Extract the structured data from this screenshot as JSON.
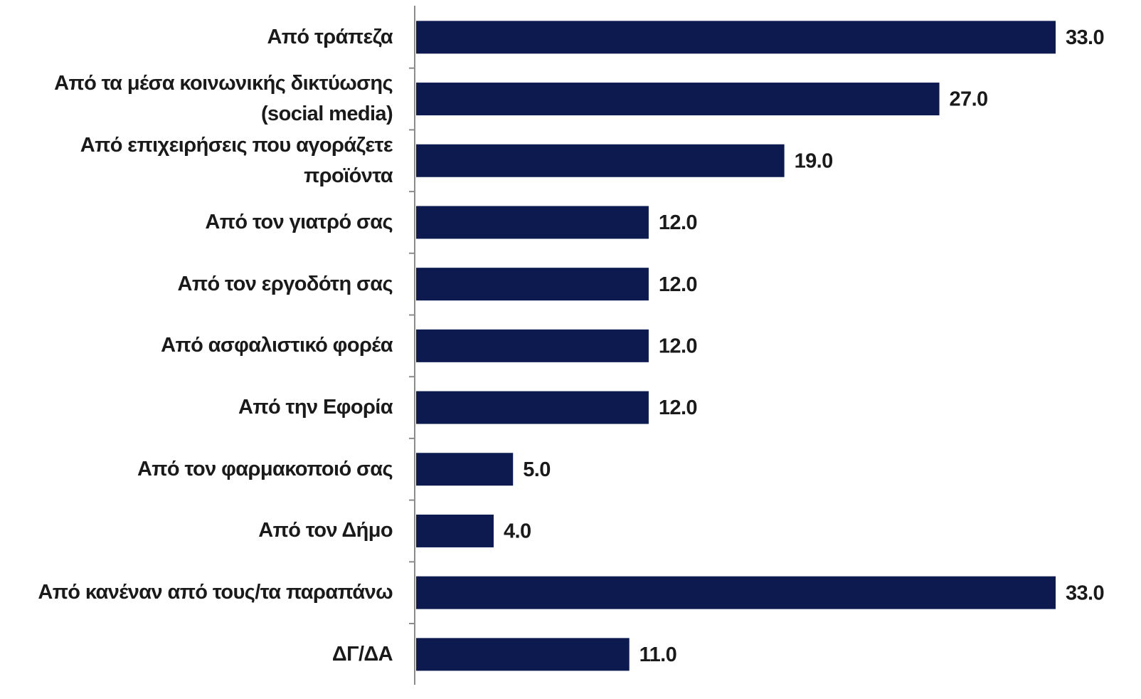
{
  "chart_data": {
    "type": "bar",
    "orientation": "horizontal",
    "color": "#0c1a4f",
    "categories": [
      "Από τράπεζα",
      "Από τα μέσα κοινωνικής δικτύωσης (social media)",
      "Από επιχειρήσεις που αγοράζετε προϊόντα",
      "Από τον γιατρό σας",
      "Από τον εργοδότη σας",
      "Από ασφαλιστικό φορέα",
      "Από την Εφορία",
      "Από τον φαρμακοποιό σας",
      "Από τον Δήμο",
      "Από κανέναν από τους/τα παραπάνω",
      "ΔΓ/ΔΑ"
    ],
    "values": [
      33,
      27,
      19,
      12,
      12,
      12,
      12,
      5,
      4,
      33,
      11
    ],
    "value_labels": [
      "33.0",
      "27.0",
      "19.0",
      "12.0",
      "12.0",
      "12.0",
      "12.0",
      "5.0",
      "4.0",
      "33.0",
      "11.0"
    ]
  }
}
